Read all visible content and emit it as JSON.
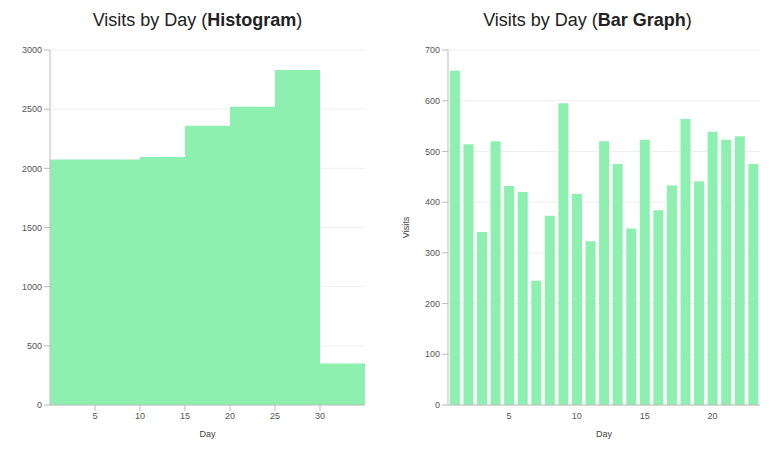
{
  "chart_data": [
    {
      "type": "histogram",
      "title": "Visits by Day (Histogram)",
      "x_label": "Day",
      "bins": [
        0,
        5,
        10,
        15,
        20,
        25,
        30,
        35
      ],
      "values": [
        2075,
        2075,
        2095,
        2360,
        2520,
        2830,
        350
      ],
      "color": "#8ef0b0",
      "xlim": [
        0,
        35
      ],
      "xticks": [
        5,
        10,
        15,
        20,
        25,
        30
      ],
      "ylim": [
        0,
        3000
      ],
      "yticks": [
        0,
        500,
        1000,
        1500,
        2000,
        2500,
        3000
      ],
      "grid": true
    },
    {
      "type": "bar",
      "title": "Visits by Day (Bar Graph)",
      "x_label": "Day",
      "y_label": "Visits",
      "categories": [
        null,
        null,
        null,
        null,
        "5",
        null,
        null,
        null,
        null,
        "10",
        null,
        null,
        null,
        null,
        "15",
        null,
        null,
        null,
        null,
        "20",
        null,
        null,
        null
      ],
      "values": [
        659,
        514,
        341,
        520,
        432,
        420,
        245,
        373,
        595,
        416,
        323,
        520,
        475,
        348,
        523,
        384,
        433,
        564,
        441,
        539,
        523,
        530,
        475
      ],
      "color": "#8ef0b0",
      "ylim": [
        0,
        700
      ],
      "yticks": [
        0,
        100,
        200,
        300,
        400,
        500,
        600,
        700
      ],
      "grid": true
    }
  ]
}
